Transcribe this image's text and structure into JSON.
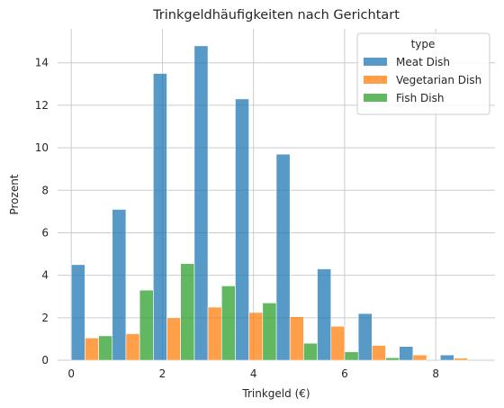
{
  "chart_data": {
    "type": "bar",
    "title": "Trinkgeldhäufigkeiten nach Gerichtart",
    "xlabel": "Trinkgeld (€)",
    "ylabel": "Prozent",
    "xlim": [
      -0.3,
      9.3
    ],
    "ylim": [
      0,
      15.6
    ],
    "x_ticks": [
      0,
      2,
      4,
      6,
      8
    ],
    "y_ticks": [
      0,
      2,
      4,
      6,
      8,
      10,
      12,
      14
    ],
    "grid": true,
    "legend_title": "type",
    "legend_position": "top-right",
    "bin_starts": [
      0,
      0.9,
      1.8,
      2.7,
      3.6,
      4.5,
      5.4,
      6.3,
      7.2,
      8.1
    ],
    "group_width": 0.9,
    "series": [
      {
        "name": "Meat Dish",
        "color": "#1f77b4",
        "values": [
          4.5,
          7.1,
          13.5,
          14.8,
          12.3,
          9.7,
          4.3,
          2.2,
          0.65,
          0.25
        ]
      },
      {
        "name": "Vegetarian Dish",
        "color": "#ff7f0e",
        "values": [
          1.05,
          1.25,
          2.0,
          2.5,
          2.25,
          2.05,
          1.6,
          0.7,
          0.25,
          0.1
        ]
      },
      {
        "name": "Fish Dish",
        "color": "#2ca02c",
        "values": [
          1.15,
          3.3,
          4.55,
          3.5,
          2.7,
          0.8,
          0.4,
          0.12,
          0.0,
          0.0
        ]
      }
    ]
  }
}
